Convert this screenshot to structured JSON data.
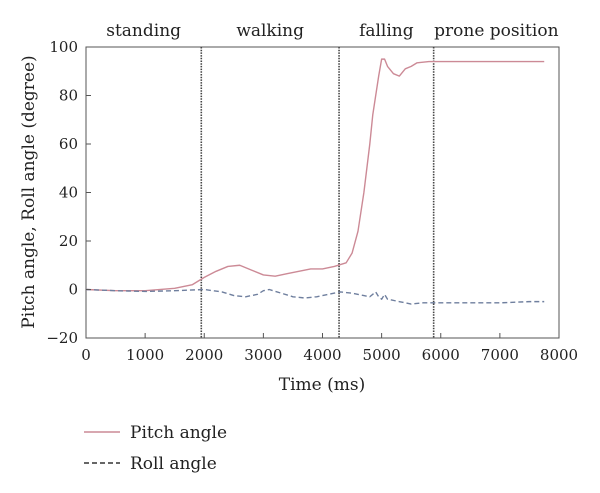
{
  "chart_data": {
    "type": "line",
    "title": "",
    "xlabel": "Time (ms)",
    "ylabel": "Pitch angle, Roll angle (degree)",
    "xlim": [
      0,
      8000
    ],
    "ylim": [
      -20,
      100
    ],
    "x_ticks": [
      0,
      1000,
      2000,
      3000,
      4000,
      5000,
      6000,
      7000,
      8000
    ],
    "y_ticks": [
      -20,
      0,
      20,
      40,
      60,
      80,
      100
    ],
    "grid": false,
    "legend_position": "bottom-left, below plot",
    "phase_boundaries": [
      1950,
      4280,
      5880
    ],
    "phases": [
      {
        "label": "standing",
        "start": 0,
        "end": 1950
      },
      {
        "label": "walking",
        "start": 1950,
        "end": 4280
      },
      {
        "label": "falling",
        "start": 4280,
        "end": 5880
      },
      {
        "label": "prone position",
        "start": 5880,
        "end": 8000
      }
    ],
    "series": [
      {
        "name": "Pitch angle",
        "style": "solid",
        "color": "#cc8a96",
        "x": [
          0,
          500,
          1000,
          1500,
          1800,
          2000,
          2200,
          2400,
          2600,
          2800,
          3000,
          3200,
          3400,
          3600,
          3800,
          4000,
          4200,
          4400,
          4500,
          4600,
          4700,
          4800,
          4850,
          4900,
          4950,
          5000,
          5050,
          5100,
          5200,
          5300,
          5400,
          5500,
          5600,
          5800,
          6000,
          6500,
          7000,
          7500,
          7750
        ],
        "values": [
          0,
          -0.5,
          -0.5,
          0.5,
          2,
          5,
          7.5,
          9.5,
          10,
          8,
          6,
          5.5,
          6.5,
          7.5,
          8.5,
          8.5,
          9.5,
          11,
          15,
          24,
          40,
          60,
          72,
          80,
          88,
          95,
          95,
          92,
          89,
          88,
          91,
          92,
          93.5,
          94,
          94,
          94,
          94,
          94,
          94
        ]
      },
      {
        "name": "Roll angle",
        "style": "dashed",
        "color": "#6f7f9e",
        "x": [
          0,
          500,
          1000,
          1500,
          2000,
          2300,
          2500,
          2700,
          2900,
          3000,
          3100,
          3300,
          3500,
          3700,
          3900,
          4100,
          4300,
          4500,
          4700,
          4800,
          4900,
          4950,
          5000,
          5050,
          5100,
          5300,
          5500,
          5700,
          6000,
          6500,
          7000,
          7500,
          7750
        ],
        "values": [
          0,
          -0.5,
          -0.8,
          -0.5,
          0,
          -1,
          -2.5,
          -3,
          -2,
          -0.5,
          0,
          -1.5,
          -3,
          -3.5,
          -3,
          -2,
          -1,
          -1.5,
          -2.5,
          -3,
          -1,
          -3,
          -4,
          -2,
          -4,
          -5,
          -6,
          -5.5,
          -5.5,
          -5.5,
          -5.5,
          -5,
          -5
        ]
      }
    ]
  }
}
